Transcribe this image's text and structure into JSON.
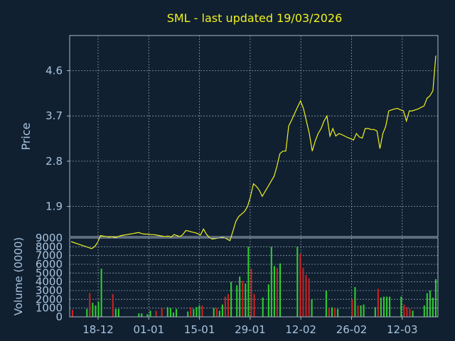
{
  "colors": {
    "background": "#102030",
    "plot_border": "#a8b8c8",
    "grid": "#8899aa",
    "title": "#f0f020",
    "axis_text": "#a8c4e0",
    "price_line": "#f0f020",
    "volume_up": "#30d030",
    "volume_down": "#d02020"
  },
  "chart_data": [
    {
      "type": "line",
      "title": "SML - last updated 19/03/2026",
      "ylabel": "Price",
      "ylim": [
        1.3,
        5.3
      ],
      "y_ticks": [
        "1.9",
        "2.8",
        "3.7",
        "4.6"
      ],
      "x_ticks": [
        "18-12",
        "01-01",
        "15-01",
        "29-01",
        "12-02",
        "26-02",
        "12-03"
      ],
      "grid": true,
      "series": [
        {
          "values": [
            1.2,
            1.18,
            1.16,
            1.14,
            1.12,
            1.1,
            1.08,
            1.06,
            1.1,
            1.18,
            1.32,
            1.31,
            1.3,
            1.29,
            1.3,
            1.28,
            1.3,
            1.32,
            1.33,
            1.34,
            1.35,
            1.36,
            1.37,
            1.38,
            1.36,
            1.35,
            1.35,
            1.34,
            1.34,
            1.33,
            1.32,
            1.31,
            1.3,
            1.31,
            1.29,
            1.34,
            1.32,
            1.3,
            1.34,
            1.42,
            1.41,
            1.39,
            1.38,
            1.36,
            1.33,
            1.45,
            1.35,
            1.28,
            1.25,
            1.26,
            1.27,
            1.28,
            1.28,
            1.25,
            1.22,
            1.4,
            1.6,
            1.7,
            1.75,
            1.8,
            1.9,
            2.1,
            2.35,
            2.3,
            2.22,
            2.1,
            2.2,
            2.3,
            2.4,
            2.5,
            2.7,
            2.95,
            3.0,
            3.0,
            3.5,
            3.62,
            3.75,
            3.88,
            4.0,
            3.85,
            3.6,
            3.35,
            3.0,
            3.2,
            3.35,
            3.45,
            3.6,
            3.7,
            3.3,
            3.45,
            3.3,
            3.35,
            3.33,
            3.3,
            3.27,
            3.25,
            3.22,
            3.35,
            3.28,
            3.26,
            3.45,
            3.45,
            3.43,
            3.43,
            3.4,
            3.05,
            3.35,
            3.5,
            3.8,
            3.82,
            3.84,
            3.85,
            3.82,
            3.8,
            3.6,
            3.8,
            3.8,
            3.82,
            3.84,
            3.87,
            3.9,
            4.05,
            4.1,
            4.2,
            4.9
          ]
        }
      ]
    },
    {
      "type": "bar",
      "ylabel": "Volume (0000)",
      "ylim": [
        0,
        9000
      ],
      "y_ticks": [
        "0",
        "1000",
        "2000",
        "3000",
        "4000",
        "5000",
        "6000",
        "7000",
        "8000",
        "9000"
      ],
      "grid": true,
      "series": [
        {
          "values": [
            800,
            0,
            0,
            0,
            0,
            900,
            2700,
            1600,
            1300,
            1700,
            5500,
            0,
            0,
            0,
            2600,
            900,
            900,
            0,
            0,
            0,
            0,
            0,
            0,
            400,
            400,
            0,
            300,
            700,
            0,
            700,
            0,
            1000,
            0,
            1100,
            1000,
            500,
            900,
            0,
            0,
            0,
            600,
            1100,
            900,
            1100,
            1300,
            1300,
            0,
            0,
            0,
            1000,
            1000,
            700,
            1400,
            2300,
            2600,
            4000,
            0,
            3600,
            4600,
            4100,
            3800,
            8000,
            5500,
            2600,
            0,
            0,
            2200,
            0,
            3700,
            8000,
            5800,
            5600,
            6100,
            0,
            0,
            0,
            0,
            0,
            8000,
            7200,
            5600,
            4800,
            4400,
            2000,
            0,
            0,
            0,
            0,
            3000,
            1000,
            1100,
            1000,
            900,
            0,
            0,
            0,
            0,
            2000,
            3400,
            1300,
            1300,
            1400,
            0,
            0,
            0,
            1100,
            3200,
            2200,
            2300,
            2300,
            2300,
            0,
            0,
            0,
            2300,
            1400,
            1100,
            900,
            700,
            0,
            0,
            0,
            1300,
            2700,
            3000,
            2200,
            4300
          ],
          "up": [
            0,
            0,
            0,
            0,
            0,
            1,
            0,
            1,
            1,
            1,
            1,
            0,
            0,
            0,
            0,
            1,
            1,
            0,
            0,
            0,
            0,
            0,
            0,
            1,
            1,
            0,
            1,
            1,
            0,
            0,
            0,
            0,
            0,
            1,
            1,
            1,
            1,
            0,
            0,
            0,
            1,
            0,
            1,
            1,
            1,
            0,
            0,
            0,
            0,
            1,
            0,
            1,
            1,
            0,
            0,
            1,
            0,
            1,
            1,
            0,
            1,
            1,
            0,
            0,
            0,
            0,
            1,
            0,
            1,
            1,
            1,
            0,
            1,
            0,
            0,
            0,
            0,
            0,
            1,
            0,
            0,
            0,
            0,
            1,
            0,
            0,
            0,
            0,
            1,
            0,
            1,
            0,
            1,
            0,
            0,
            0,
            0,
            0,
            1,
            0,
            1,
            1,
            0,
            0,
            0,
            1,
            0,
            1,
            1,
            1,
            1,
            0,
            0,
            0,
            1,
            0,
            0,
            0,
            1,
            0,
            0,
            0,
            1,
            1,
            1,
            1,
            1
          ]
        }
      ]
    }
  ]
}
